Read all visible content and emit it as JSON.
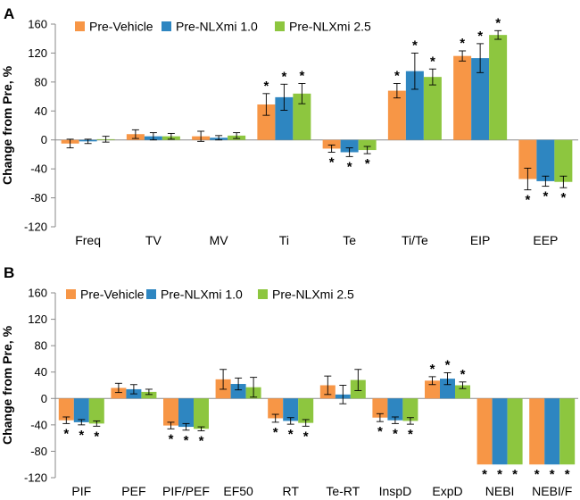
{
  "colors": {
    "pre_vehicle": "#f79646",
    "pre_nlxmi_1": "#2e86c1",
    "pre_nlxmi_2_5": "#8dc63f"
  },
  "chart_data": [
    {
      "panel": "A",
      "type": "bar",
      "ylabel": "Change from Pre, %",
      "ylim": [
        -120,
        160
      ],
      "yticks": [
        "160",
        "120",
        "80",
        "40",
        "0",
        "-40",
        "-80",
        "-120"
      ],
      "legend": [
        "Pre-Vehicle",
        "Pre-NLXmi 1.0",
        "Pre-NLXmi 2.5"
      ],
      "categories": [
        "Freq",
        "TV",
        "MV",
        "Ti",
        "Te",
        "Ti/Te",
        "EIP",
        "EEP"
      ],
      "series": [
        {
          "name": "Pre-Vehicle",
          "values": [
            -5,
            8,
            5,
            49,
            -12,
            68,
            116,
            -54
          ],
          "errors": [
            6,
            6,
            7,
            15,
            5,
            10,
            7,
            15
          ],
          "sig": [
            false,
            false,
            false,
            true,
            true,
            true,
            true,
            true
          ]
        },
        {
          "name": "Pre-NLXmi 1.0",
          "values": [
            -2,
            5,
            3,
            59,
            -17,
            95,
            113,
            -57
          ],
          "errors": [
            3,
            5,
            3,
            18,
            6,
            25,
            20,
            7
          ],
          "sig": [
            false,
            false,
            false,
            true,
            true,
            true,
            true,
            true
          ]
        },
        {
          "name": "Pre-NLXmi 2.5",
          "values": [
            1,
            5,
            6,
            64,
            -14,
            87,
            145,
            -58
          ],
          "errors": [
            4,
            4,
            4,
            14,
            5,
            11,
            6,
            8
          ],
          "sig": [
            false,
            false,
            false,
            true,
            true,
            true,
            true,
            true
          ]
        }
      ]
    },
    {
      "panel": "B",
      "type": "bar",
      "ylabel": "Change from Pre, %",
      "ylim": [
        -120,
        160
      ],
      "yticks": [
        "160",
        "120",
        "80",
        "40",
        "0",
        "-40",
        "-80",
        "-120"
      ],
      "legend": [
        "Pre-Vehicle",
        "Pre-NLXmi 1.0",
        "Pre-NLXmi 2.5"
      ],
      "categories": [
        "PIF",
        "PEF",
        "PIF/PEF",
        "EF50",
        "RT",
        "Te-RT",
        "InspD",
        "ExpD",
        "NEBI",
        "NEBI/F"
      ],
      "series": [
        {
          "name": "Pre-Vehicle",
          "values": [
            -33,
            16,
            -41,
            29,
            -30,
            20,
            -29,
            27,
            -100,
            -100
          ],
          "errors": [
            5,
            7,
            5,
            15,
            6,
            14,
            6,
            6,
            0,
            0
          ],
          "sig": [
            true,
            false,
            true,
            false,
            true,
            false,
            true,
            true,
            true,
            true
          ]
        },
        {
          "name": "Pre-NLXmi 1.0",
          "values": [
            -36,
            14,
            -43,
            22,
            -34,
            6,
            -33,
            30,
            -100,
            -100
          ],
          "errors": [
            4,
            7,
            5,
            9,
            5,
            14,
            5,
            9,
            0,
            0
          ],
          "sig": [
            true,
            false,
            true,
            false,
            true,
            false,
            true,
            true,
            true,
            true
          ]
        },
        {
          "name": "Pre-NLXmi 2.5",
          "values": [
            -38,
            10,
            -46,
            17,
            -37,
            28,
            -34,
            20,
            -100,
            -100
          ],
          "errors": [
            4,
            4,
            3,
            15,
            5,
            16,
            5,
            5,
            0,
            0
          ],
          "sig": [
            true,
            false,
            true,
            false,
            true,
            false,
            true,
            true,
            true,
            true
          ]
        }
      ]
    }
  ]
}
